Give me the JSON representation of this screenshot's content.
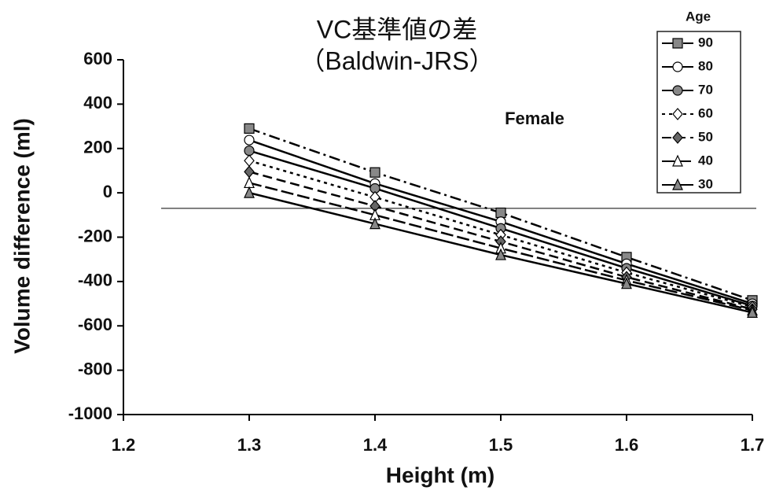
{
  "chart_data": {
    "type": "line",
    "title": "VC基準値の差",
    "subtitle": "（Baldwin-JRS）",
    "annotation": "Female",
    "x_label": "Height (m)",
    "y_label": "Volume difference (ml)",
    "legend_title": "Age",
    "x": [
      1.3,
      1.4,
      1.5,
      1.6,
      1.7
    ],
    "xlim": [
      1.2,
      1.7
    ],
    "xticks": [
      1.2,
      1.3,
      1.4,
      1.5,
      1.6,
      1.7
    ],
    "ylim": [
      -1000,
      600
    ],
    "yticks": [
      -1000,
      -800,
      -600,
      -400,
      -200,
      0,
      200,
      400,
      600
    ],
    "reference_line": -70,
    "series": [
      {
        "name": "90",
        "color": "#000000",
        "marker": "square",
        "marker_fill": "#888888",
        "dash": "14 5 3 5",
        "values": [
          290,
          92,
          -90,
          -290,
          -485
        ]
      },
      {
        "name": "80",
        "color": "#000000",
        "marker": "circle",
        "marker_fill": "#ffffff",
        "dash": "none",
        "values": [
          238,
          42,
          -130,
          -320,
          -500
        ]
      },
      {
        "name": "70",
        "color": "#000000",
        "marker": "circle",
        "marker_fill": "#888888",
        "dash": "none",
        "values": [
          190,
          20,
          -160,
          -340,
          -510
        ]
      },
      {
        "name": "60",
        "color": "#000000",
        "marker": "diamond",
        "marker_fill": "#ffffff",
        "dash": "4 5",
        "values": [
          145,
          -20,
          -190,
          -360,
          -515
        ]
      },
      {
        "name": "50",
        "color": "#000000",
        "marker": "diamond",
        "marker_fill": "#666666",
        "dash": "12 6",
        "values": [
          95,
          -60,
          -220,
          -380,
          -525
        ]
      },
      {
        "name": "40",
        "color": "#000000",
        "marker": "triangle",
        "marker_fill": "#ffffff",
        "dash": "16 5",
        "values": [
          45,
          -100,
          -250,
          -395,
          -530
        ]
      },
      {
        "name": "30",
        "color": "#000000",
        "marker": "triangle",
        "marker_fill": "#888888",
        "dash": "none",
        "values": [
          0,
          -140,
          -280,
          -410,
          -540
        ]
      }
    ]
  }
}
